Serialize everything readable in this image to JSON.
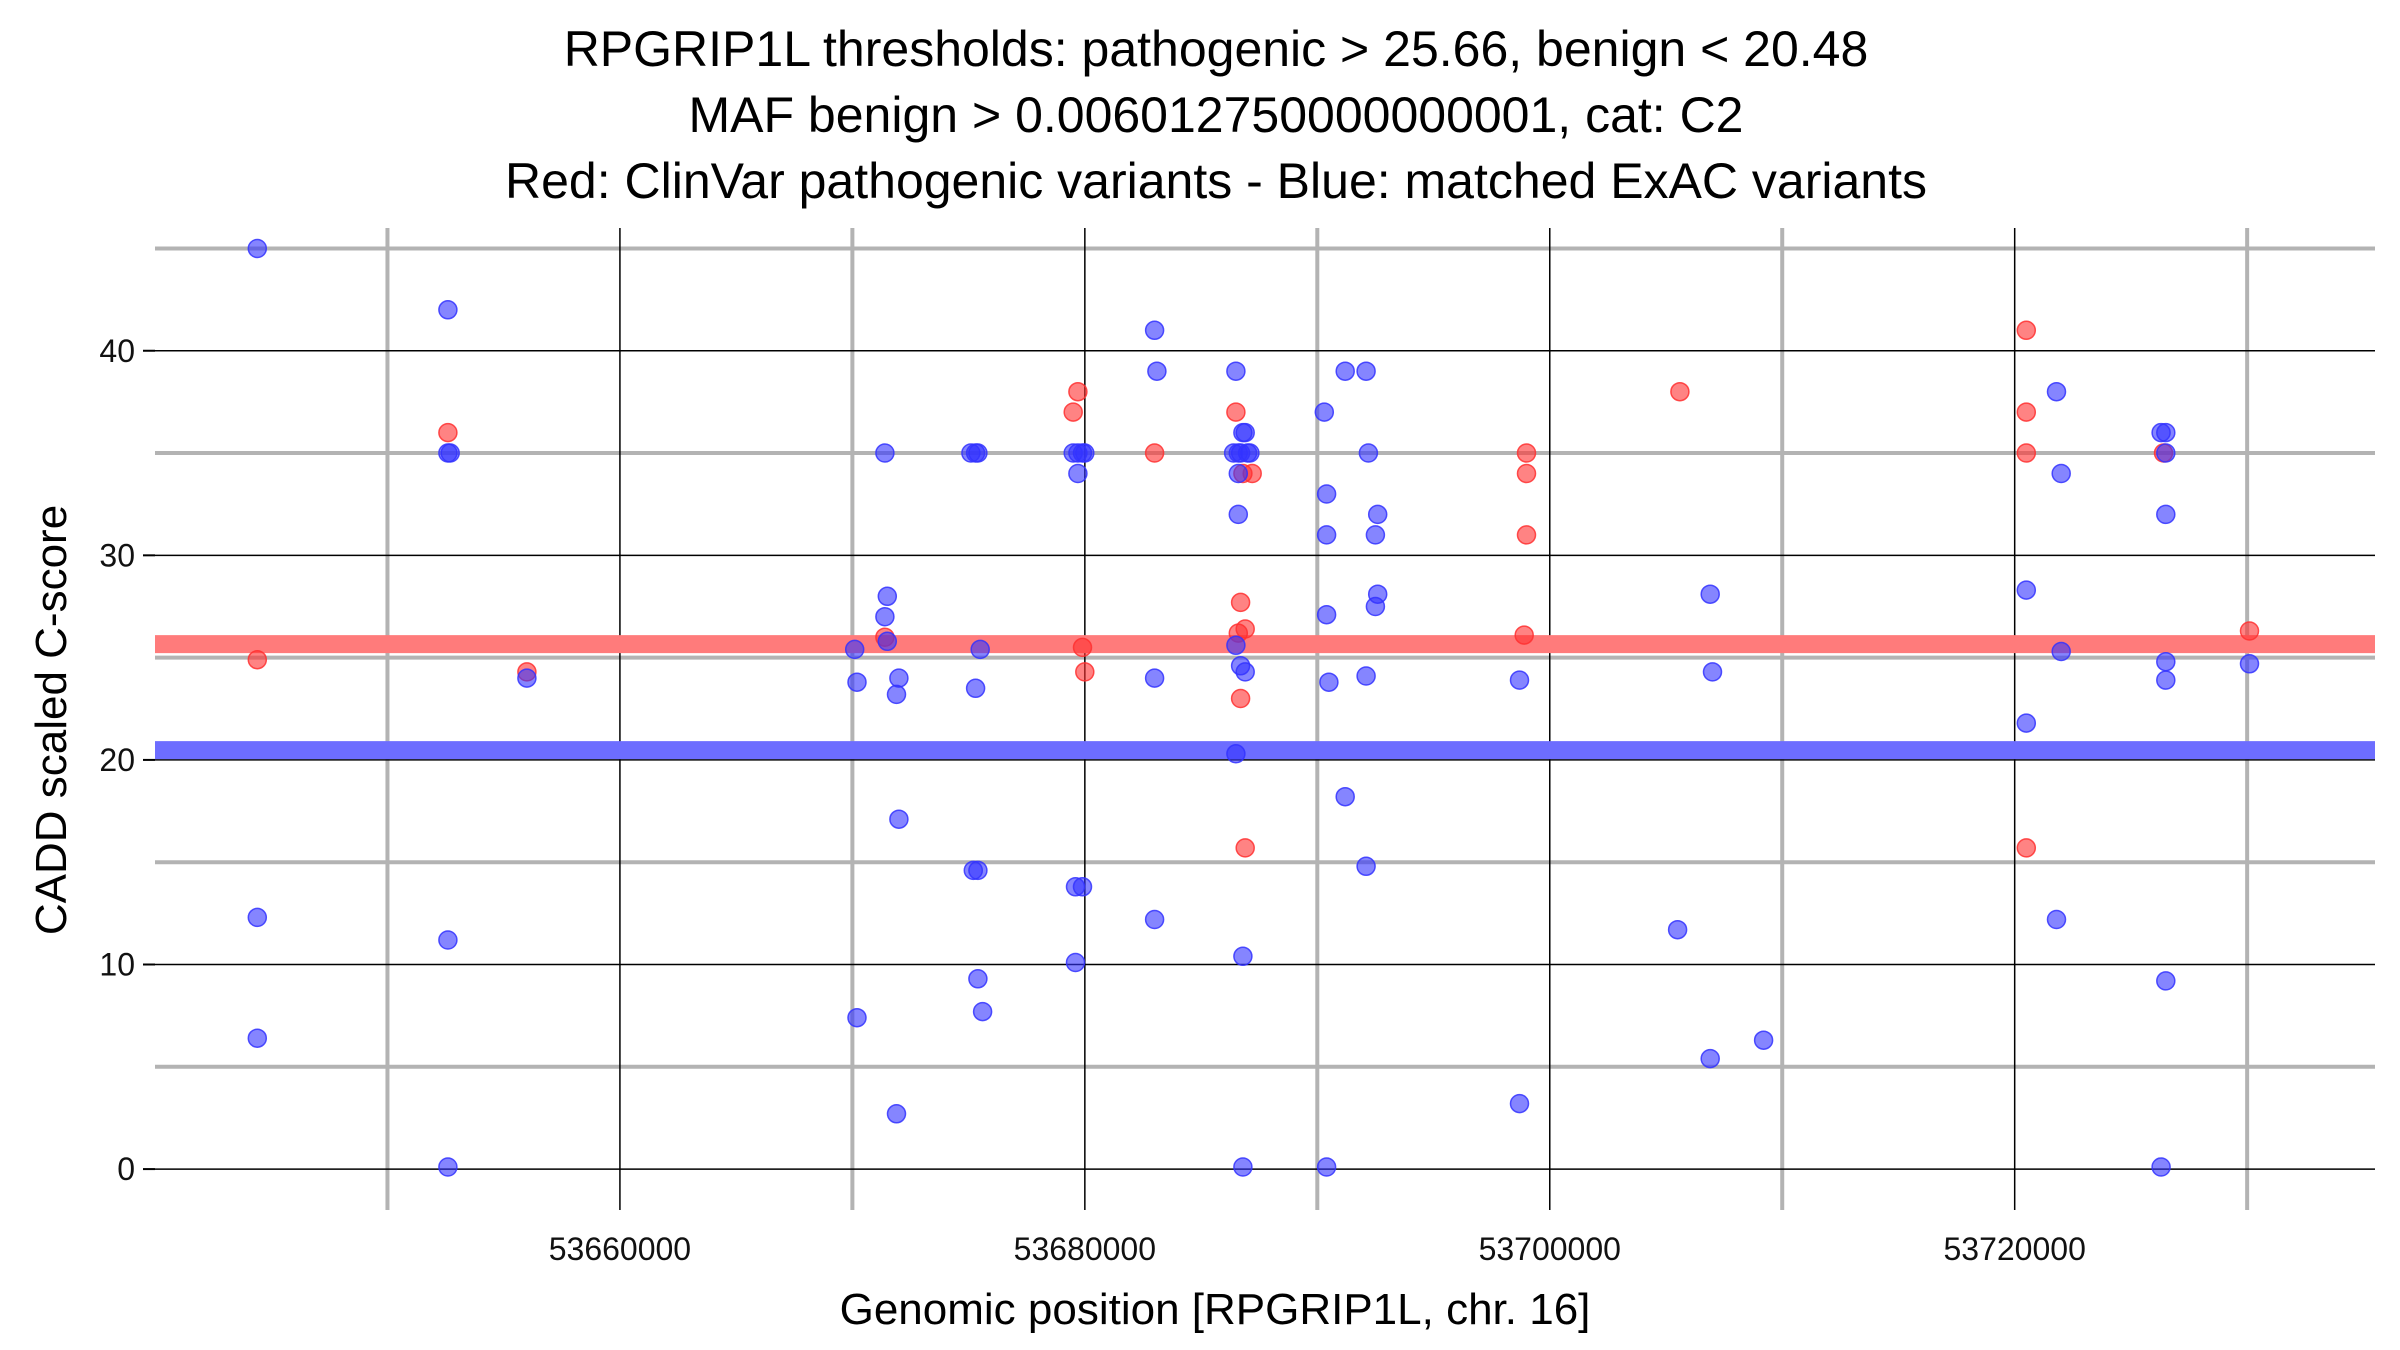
{
  "chart_data": {
    "type": "scatter",
    "title": [
      "RPGRIP1L thresholds: pathogenic > 25.66, benign < 20.48",
      "MAF benign > 0.006012750000000001, cat: C2",
      "Red: ClinVar pathogenic variants - Blue: matched ExAC variants"
    ],
    "xlabel": "Genomic position [RPGRIP1L, chr. 16]",
    "ylabel": "CADD scaled C-score",
    "xlim": [
      53640000,
      53735500
    ],
    "ylim": [
      -2,
      46
    ],
    "x_ticks": [
      53660000,
      53680000,
      53700000,
      53720000
    ],
    "y_ticks": [
      0,
      10,
      20,
      30,
      40
    ],
    "x_minor": [
      53650000,
      53670000,
      53690000,
      53710000,
      53730000
    ],
    "y_minor": [
      5,
      15,
      25,
      35,
      45
    ],
    "grid": true,
    "thresholds": [
      {
        "value": 25.66,
        "color": "#ff7b7b"
      },
      {
        "value": 20.48,
        "color": "#6d6dff"
      }
    ],
    "series": [
      {
        "color": "#ff3030",
        "points": [
          [
            53644400,
            24.9
          ],
          [
            53652600,
            36
          ],
          [
            53656000,
            24.3
          ],
          [
            53671400,
            26
          ],
          [
            53679500,
            37
          ],
          [
            53679700,
            38
          ],
          [
            53679900,
            25.5
          ],
          [
            53680000,
            24.3
          ],
          [
            53683000,
            35
          ],
          [
            53686500,
            37
          ],
          [
            53686600,
            26.2
          ],
          [
            53686700,
            23
          ],
          [
            53686700,
            27.7
          ],
          [
            53686800,
            34
          ],
          [
            53686900,
            26.4
          ],
          [
            53686900,
            15.7
          ],
          [
            53687200,
            34
          ],
          [
            53698900,
            26.1
          ],
          [
            53699000,
            35
          ],
          [
            53699000,
            34
          ],
          [
            53699000,
            31
          ],
          [
            53705600,
            38
          ],
          [
            53720500,
            41
          ],
          [
            53720500,
            37
          ],
          [
            53720500,
            35
          ],
          [
            53720500,
            15.7
          ],
          [
            53726400,
            35
          ],
          [
            53730100,
            26.3
          ]
        ]
      },
      {
        "color": "#3333ff",
        "points": [
          [
            53644400,
            45
          ],
          [
            53644400,
            12.3
          ],
          [
            53644400,
            6.4
          ],
          [
            53652600,
            42
          ],
          [
            53652600,
            35
          ],
          [
            53652700,
            35
          ],
          [
            53652600,
            11.2
          ],
          [
            53652600,
            0.1
          ],
          [
            53656000,
            24
          ],
          [
            53670100,
            25.4
          ],
          [
            53670200,
            23.8
          ],
          [
            53670200,
            7.4
          ],
          [
            53671400,
            35
          ],
          [
            53671500,
            28
          ],
          [
            53671400,
            27
          ],
          [
            53671500,
            25.8
          ],
          [
            53672000,
            24
          ],
          [
            53671900,
            23.2
          ],
          [
            53672000,
            17.1
          ],
          [
            53671900,
            2.7
          ],
          [
            53675100,
            35
          ],
          [
            53675300,
            35
          ],
          [
            53675400,
            35
          ],
          [
            53675300,
            23.5
          ],
          [
            53675500,
            25.4
          ],
          [
            53675200,
            14.6
          ],
          [
            53675400,
            14.6
          ],
          [
            53675400,
            9.3
          ],
          [
            53675600,
            7.7
          ],
          [
            53679500,
            35
          ],
          [
            53679700,
            35
          ],
          [
            53679900,
            35
          ],
          [
            53680000,
            35
          ],
          [
            53679700,
            34
          ],
          [
            53679600,
            13.8
          ],
          [
            53679900,
            13.8
          ],
          [
            53679600,
            10.1
          ],
          [
            53683000,
            41
          ],
          [
            53683100,
            39
          ],
          [
            53683000,
            24
          ],
          [
            53683000,
            12.2
          ],
          [
            53686500,
            39
          ],
          [
            53686400,
            35
          ],
          [
            53686600,
            35
          ],
          [
            53686700,
            35
          ],
          [
            53686800,
            36
          ],
          [
            53686900,
            36
          ],
          [
            53687000,
            35
          ],
          [
            53687100,
            35
          ],
          [
            53686600,
            34
          ],
          [
            53686600,
            32
          ],
          [
            53686500,
            25.6
          ],
          [
            53686700,
            24.6
          ],
          [
            53686900,
            24.3
          ],
          [
            53686500,
            20.3
          ],
          [
            53686800,
            10.4
          ],
          [
            53686800,
            0.1
          ],
          [
            53690300,
            37
          ],
          [
            53690400,
            33
          ],
          [
            53690400,
            31
          ],
          [
            53690400,
            27.1
          ],
          [
            53690500,
            23.8
          ],
          [
            53690400,
            0.1
          ],
          [
            53691200,
            39
          ],
          [
            53691200,
            18.2
          ],
          [
            53692100,
            39
          ],
          [
            53692200,
            35
          ],
          [
            53692100,
            24.1
          ],
          [
            53692100,
            14.8
          ],
          [
            53692600,
            32
          ],
          [
            53692500,
            31
          ],
          [
            53692600,
            28.1
          ],
          [
            53692500,
            27.5
          ],
          [
            53698700,
            23.9
          ],
          [
            53698700,
            3.2
          ],
          [
            53705500,
            11.7
          ],
          [
            53706900,
            28.1
          ],
          [
            53707000,
            24.3
          ],
          [
            53706900,
            5.4
          ],
          [
            53709200,
            6.3
          ],
          [
            53720500,
            28.3
          ],
          [
            53720500,
            21.8
          ],
          [
            53721800,
            38
          ],
          [
            53722000,
            34
          ],
          [
            53722000,
            25.3
          ],
          [
            53721800,
            12.2
          ],
          [
            53726300,
            36
          ],
          [
            53726500,
            36
          ],
          [
            53726500,
            35
          ],
          [
            53726500,
            32
          ],
          [
            53726500,
            24.8
          ],
          [
            53726500,
            23.9
          ],
          [
            53726500,
            9.2
          ],
          [
            53726300,
            0.1
          ],
          [
            53730100,
            24.7
          ]
        ]
      }
    ]
  }
}
